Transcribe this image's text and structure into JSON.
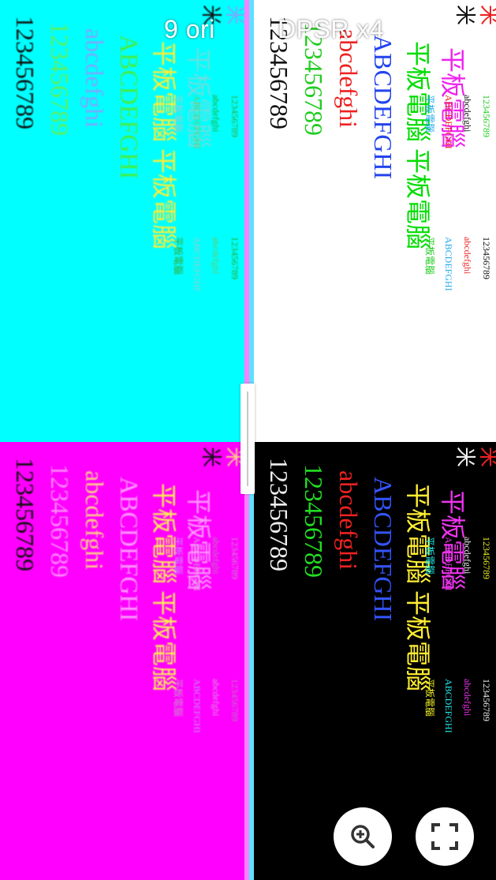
{
  "labels": {
    "left": "9 ori",
    "right": "DPSR x4"
  },
  "glyphs": {
    "star": "✳",
    "mi": "米",
    "digits": "123456789",
    "lower": "abcdefghi",
    "upper": "ABCDEFGHI",
    "cjk": "平板電腦"
  },
  "colors": {
    "cyan": "#00ffff",
    "magenta": "#ff00ff",
    "white": "#ffffff",
    "black": "#000000",
    "separator_left": "#ff80ff",
    "separator_right": "#5fe0ff"
  },
  "buttons": {
    "zoom": "zoom-in",
    "fullscreen": "fullscreen"
  }
}
